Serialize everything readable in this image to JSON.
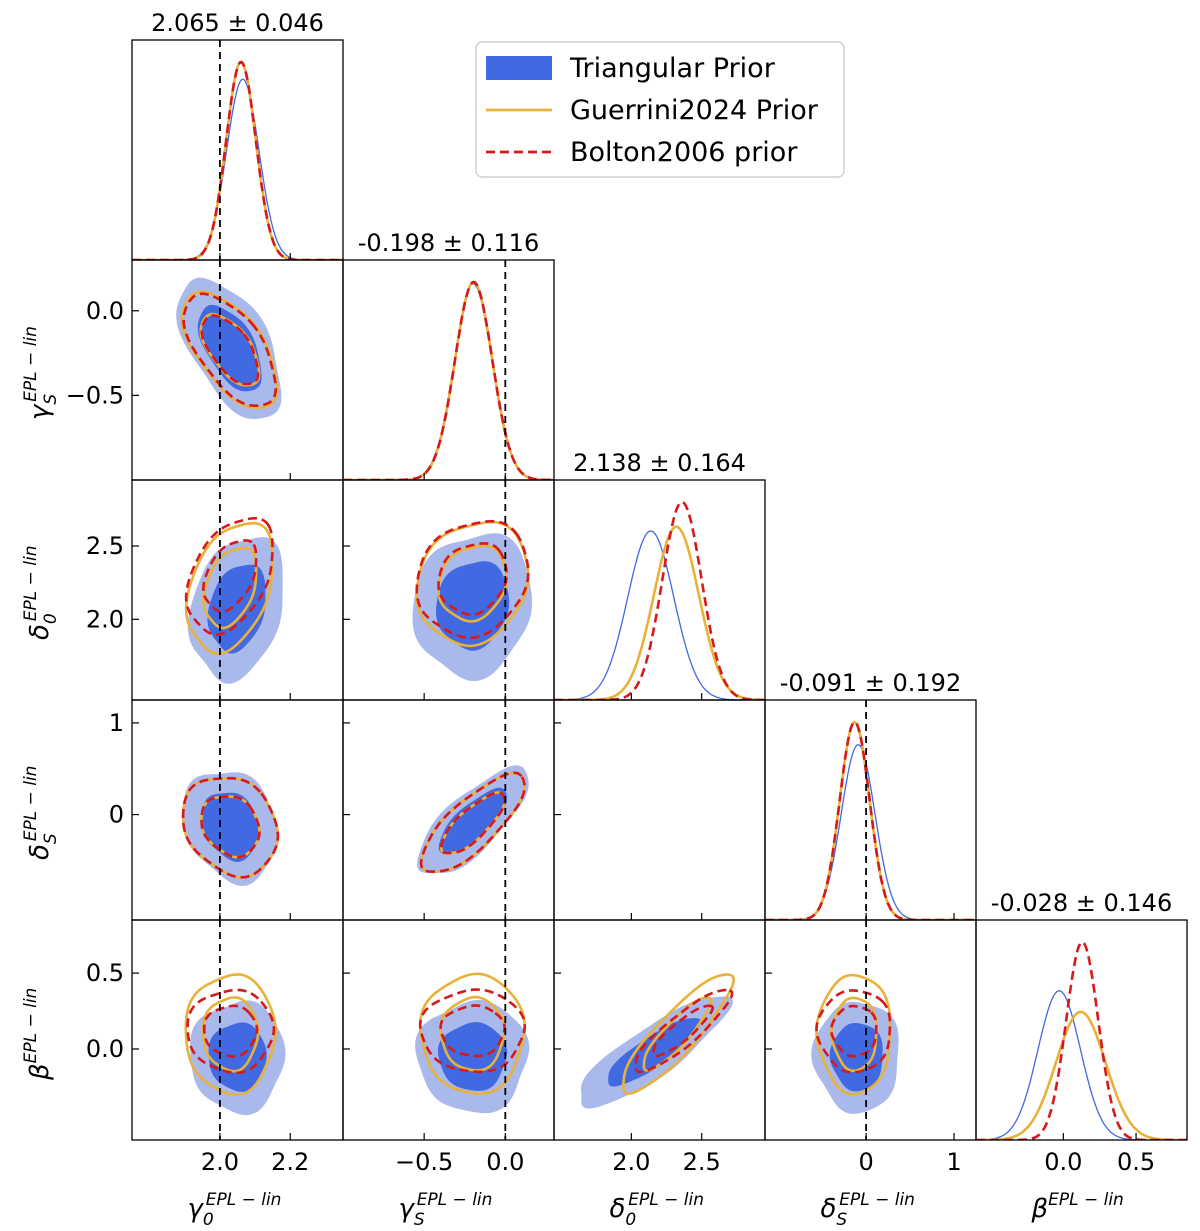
{
  "chart_data": {
    "type": "corner",
    "parameters": [
      {
        "id": "gamma0",
        "label_base": "γ",
        "label_sub": "0",
        "label_sup": "EPL − lin",
        "range": [
          1.75,
          2.35
        ],
        "ticks": [
          2.0,
          2.2
        ],
        "tick_labels": [
          "2.0",
          "2.2"
        ],
        "truth": 2.0,
        "title": "2.065 ± 0.046"
      },
      {
        "id": "gammaS",
        "label_base": "γ",
        "label_sub": "S",
        "label_sup": "EPL − lin",
        "range": [
          -1.0,
          0.3
        ],
        "ticks": [
          -0.5,
          0.0
        ],
        "tick_labels": [
          "−0.5",
          "0.0"
        ],
        "truth": 0.0,
        "title": "-0.198 ± 0.116"
      },
      {
        "id": "delta0",
        "label_base": "δ",
        "label_sub": "0",
        "label_sup": "EPL − lin",
        "range": [
          1.45,
          2.95
        ],
        "ticks": [
          2.0,
          2.5
        ],
        "tick_labels": [
          "2.0",
          "2.5"
        ],
        "truth": null,
        "title": "2.138 ± 0.164"
      },
      {
        "id": "deltaS",
        "label_base": "δ",
        "label_sub": "S",
        "label_sup": "EPL − lin",
        "range": [
          -1.15,
          1.25
        ],
        "ticks": [
          0,
          1
        ],
        "tick_labels": [
          "0",
          "1"
        ],
        "truth": 0.0,
        "title": "-0.091 ± 0.192"
      },
      {
        "id": "beta",
        "label_base": "β",
        "label_sub": "",
        "label_sup": "EPL − lin",
        "range": [
          -0.6,
          0.85
        ],
        "ticks": [
          0.0,
          0.5
        ],
        "tick_labels": [
          "0.0",
          "0.5"
        ],
        "truth": null,
        "title": "-0.028 ± 0.146"
      }
    ],
    "series": [
      {
        "name": "Triangular Prior",
        "style": "filled",
        "color": "#4169e1"
      },
      {
        "name": "Guerrini2024 Prior",
        "style": "solid",
        "color": "#e8b23a"
      },
      {
        "name": "Bolton2006 prior",
        "style": "dashed",
        "color": "#d7191c"
      }
    ],
    "marginals": {
      "gamma0": {
        "Triangular Prior": {
          "mean": 2.065,
          "sd": 0.046
        },
        "Guerrini2024 Prior": {
          "mean": 2.06,
          "sd": 0.042
        },
        "Bolton2006 prior": {
          "mean": 2.06,
          "sd": 0.042
        }
      },
      "gammaS": {
        "Triangular Prior": {
          "mean": -0.198,
          "sd": 0.116
        },
        "Guerrini2024 Prior": {
          "mean": -0.195,
          "sd": 0.115
        },
        "Bolton2006 prior": {
          "mean": -0.195,
          "sd": 0.115
        }
      },
      "delta0": {
        "Triangular Prior": {
          "mean": 2.138,
          "sd": 0.164
        },
        "Guerrini2024 Prior": {
          "mean": 2.32,
          "sd": 0.16
        },
        "Bolton2006 prior": {
          "mean": 2.36,
          "sd": 0.14
        }
      },
      "deltaS": {
        "Triangular Prior": {
          "mean": -0.091,
          "sd": 0.192
        },
        "Guerrini2024 Prior": {
          "mean": -0.13,
          "sd": 0.17
        },
        "Bolton2006 prior": {
          "mean": -0.13,
          "sd": 0.17
        }
      },
      "beta": {
        "Triangular Prior": {
          "mean": -0.028,
          "sd": 0.146
        },
        "Guerrini2024 Prior": {
          "mean": 0.12,
          "sd": 0.17
        },
        "Bolton2006 prior": {
          "mean": 0.13,
          "sd": 0.11
        }
      }
    },
    "contours": {
      "gammaS|gamma0": {
        "Triangular Prior": {
          "center": [
            2.03,
            -0.22
          ],
          "sx": 0.06,
          "sy": 0.17,
          "rho": -0.55
        },
        "Guerrini2024 Prior": {
          "center": [
            2.03,
            -0.23
          ],
          "sx": 0.055,
          "sy": 0.14,
          "rho": -0.6
        },
        "Bolton2006 prior": {
          "center": [
            2.03,
            -0.23
          ],
          "sx": 0.053,
          "sy": 0.135,
          "rho": -0.6
        }
      },
      "delta0|gamma0": {
        "Triangular Prior": {
          "center": [
            2.05,
            2.08
          ],
          "sx": 0.055,
          "sy": 0.2,
          "rho": 0.25
        },
        "Guerrini2024 Prior": {
          "center": [
            2.03,
            2.22
          ],
          "sx": 0.05,
          "sy": 0.18,
          "rho": 0.35
        },
        "Bolton2006 prior": {
          "center": [
            2.03,
            2.3
          ],
          "sx": 0.05,
          "sy": 0.16,
          "rho": 0.4
        }
      },
      "delta0|gammaS": {
        "Triangular Prior": {
          "center": [
            -0.2,
            2.1
          ],
          "sx": 0.15,
          "sy": 0.2,
          "rho": 0.1
        },
        "Guerrini2024 Prior": {
          "center": [
            -0.2,
            2.25
          ],
          "sx": 0.14,
          "sy": 0.17,
          "rho": 0.15
        },
        "Bolton2006 prior": {
          "center": [
            -0.2,
            2.28
          ],
          "sx": 0.14,
          "sy": 0.16,
          "rho": 0.15
        }
      },
      "delta0|deltaS": {
        "Triangular Prior": {
          "center": [
            2.15,
            -0.1
          ],
          "sx": 0.2,
          "sy": 0.22,
          "rho": -0.55
        },
        "Guerrini2024 Prior": {
          "center": [
            2.32,
            -0.13
          ],
          "sx": 0.15,
          "sy": 0.22,
          "rho": -0.5
        },
        "Bolton2006 prior": {
          "center": [
            2.35,
            -0.13
          ],
          "sx": 0.14,
          "sy": 0.22,
          "rho": -0.5
        }
      },
      "deltaS|gamma0": {
        "Triangular Prior": {
          "center": [
            2.03,
            -0.12
          ],
          "sx": 0.055,
          "sy": 0.25,
          "rho": -0.2
        },
        "Guerrini2024 Prior": {
          "center": [
            2.03,
            -0.12
          ],
          "sx": 0.055,
          "sy": 0.22,
          "rho": -0.2
        },
        "Bolton2006 prior": {
          "center": [
            2.03,
            -0.12
          ],
          "sx": 0.055,
          "sy": 0.22,
          "rho": -0.2
        }
      },
      "deltaS|gammaS": {
        "Triangular Prior": {
          "center": [
            -0.2,
            -0.08
          ],
          "sx": 0.14,
          "sy": 0.24,
          "rho": 0.75
        },
        "Guerrini2024 Prior": {
          "center": [
            -0.2,
            -0.1
          ],
          "sx": 0.13,
          "sy": 0.22,
          "rho": 0.78
        },
        "Bolton2006 prior": {
          "center": [
            -0.2,
            -0.1
          ],
          "sx": 0.13,
          "sy": 0.22,
          "rho": 0.78
        }
      },
      "beta|gamma0": {
        "Triangular Prior": {
          "center": [
            2.05,
            -0.05
          ],
          "sx": 0.055,
          "sy": 0.15,
          "rho": 0.0
        },
        "Guerrini2024 Prior": {
          "center": [
            2.03,
            0.1
          ],
          "sx": 0.052,
          "sy": 0.16,
          "rho": 0.0
        },
        "Bolton2006 prior": {
          "center": [
            2.03,
            0.12
          ],
          "sx": 0.05,
          "sy": 0.11,
          "rho": 0.0
        }
      },
      "beta|gammaS": {
        "Triangular Prior": {
          "center": [
            -0.2,
            -0.05
          ],
          "sx": 0.14,
          "sy": 0.15,
          "rho": 0.0
        },
        "Guerrini2024 Prior": {
          "center": [
            -0.2,
            0.1
          ],
          "sx": 0.13,
          "sy": 0.16,
          "rho": 0.0
        },
        "Bolton2006 prior": {
          "center": [
            -0.2,
            0.12
          ],
          "sx": 0.13,
          "sy": 0.11,
          "rho": 0.0
        }
      },
      "beta|delta0": {
        "Triangular Prior": {
          "center": [
            2.15,
            -0.02
          ],
          "sx": 0.22,
          "sy": 0.15,
          "rho": 0.85
        },
        "Guerrini2024 Prior": {
          "center": [
            2.32,
            0.1
          ],
          "sx": 0.16,
          "sy": 0.16,
          "rho": 0.88
        },
        "Bolton2006 prior": {
          "center": [
            2.36,
            0.12
          ],
          "sx": 0.14,
          "sy": 0.11,
          "rho": 0.88
        }
      },
      "beta|deltaS": {
        "Triangular Prior": {
          "center": [
            -0.1,
            -0.05
          ],
          "sx": 0.2,
          "sy": 0.15,
          "rho": 0.0
        },
        "Guerrini2024 Prior": {
          "center": [
            -0.13,
            0.1
          ],
          "sx": 0.17,
          "sy": 0.16,
          "rho": 0.0
        },
        "Bolton2006 prior": {
          "center": [
            -0.13,
            0.12
          ],
          "sx": 0.17,
          "sy": 0.11,
          "rho": 0.0
        }
      }
    },
    "contour_levels": [
      "68%",
      "95%"
    ]
  }
}
